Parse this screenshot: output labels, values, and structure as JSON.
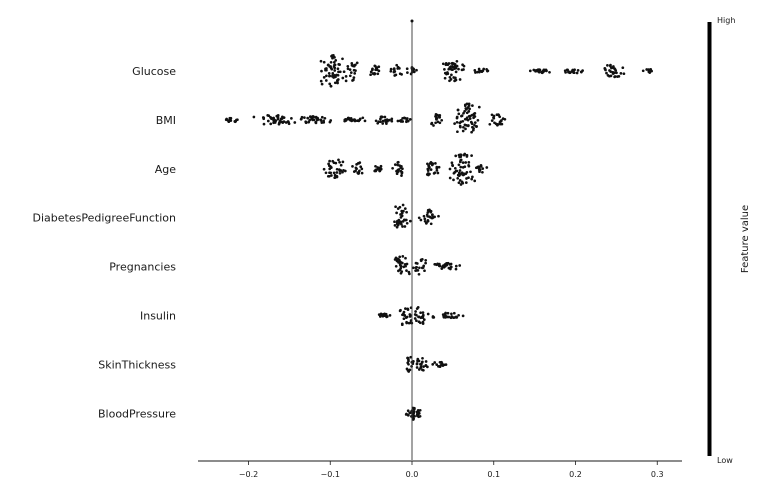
{
  "chart_data": {
    "type": "scatter",
    "subtype": "beeswarm",
    "title": "",
    "xlabel": "",
    "ylabel": "",
    "xlim": [
      -0.265,
      0.33
    ],
    "xticks": [
      -0.2,
      -0.1,
      0.0,
      0.1,
      0.2,
      0.3
    ],
    "xtick_labels": [
      "−0.2",
      "−0.1",
      "0.0",
      "0.1",
      "0.2",
      "0.3"
    ],
    "features": [
      {
        "name": "Glucose",
        "min": -0.12,
        "max": 0.3,
        "clusters": [
          {
            "x": -0.098,
            "spread": 0.9,
            "w": 0.022
          },
          {
            "x": -0.072,
            "spread": 0.55,
            "w": 0.01
          },
          {
            "x": -0.045,
            "spread": 0.3,
            "w": 0.012
          },
          {
            "x": -0.02,
            "spread": 0.35,
            "w": 0.01
          },
          {
            "x": 0.0,
            "spread": 0.2,
            "w": 0.01
          },
          {
            "x": 0.05,
            "spread": 0.6,
            "w": 0.022
          },
          {
            "x": 0.085,
            "spread": 0.12,
            "w": 0.012
          },
          {
            "x": 0.155,
            "spread": 0.12,
            "w": 0.022
          },
          {
            "x": 0.2,
            "spread": 0.12,
            "w": 0.02
          },
          {
            "x": 0.245,
            "spread": 0.35,
            "w": 0.02
          },
          {
            "x": 0.29,
            "spread": 0.1,
            "w": 0.01
          }
        ]
      },
      {
        "name": "BMI",
        "min": -0.235,
        "max": 0.12,
        "clusters": [
          {
            "x": -0.22,
            "spread": 0.12,
            "w": 0.014
          },
          {
            "x": -0.17,
            "spread": 0.3,
            "w": 0.03
          },
          {
            "x": -0.12,
            "spread": 0.2,
            "w": 0.03
          },
          {
            "x": -0.07,
            "spread": 0.15,
            "w": 0.025
          },
          {
            "x": -0.035,
            "spread": 0.25,
            "w": 0.015
          },
          {
            "x": -0.01,
            "spread": 0.12,
            "w": 0.01
          },
          {
            "x": 0.03,
            "spread": 0.35,
            "w": 0.012
          },
          {
            "x": 0.068,
            "spread": 0.95,
            "w": 0.022
          },
          {
            "x": 0.105,
            "spread": 0.35,
            "w": 0.014
          }
        ]
      },
      {
        "name": "Age",
        "min": -0.115,
        "max": 0.095,
        "clusters": [
          {
            "x": -0.095,
            "spread": 0.55,
            "w": 0.018
          },
          {
            "x": -0.065,
            "spread": 0.4,
            "w": 0.01
          },
          {
            "x": -0.04,
            "spread": 0.2,
            "w": 0.008
          },
          {
            "x": -0.015,
            "spread": 0.4,
            "w": 0.012
          },
          {
            "x": 0.025,
            "spread": 0.4,
            "w": 0.015
          },
          {
            "x": 0.06,
            "spread": 0.9,
            "w": 0.022
          },
          {
            "x": 0.085,
            "spread": 0.2,
            "w": 0.01
          }
        ]
      },
      {
        "name": "DiabetesPedigreeFunction",
        "min": -0.03,
        "max": 0.042,
        "clusters": [
          {
            "x": -0.012,
            "spread": 0.75,
            "w": 0.014
          },
          {
            "x": 0.02,
            "spread": 0.45,
            "w": 0.016
          }
        ]
      },
      {
        "name": "Pregnancies",
        "min": -0.03,
        "max": 0.065,
        "clusters": [
          {
            "x": -0.012,
            "spread": 0.6,
            "w": 0.014
          },
          {
            "x": 0.01,
            "spread": 0.45,
            "w": 0.012
          },
          {
            "x": 0.04,
            "spread": 0.2,
            "w": 0.022
          }
        ]
      },
      {
        "name": "Insulin",
        "min": -0.045,
        "max": 0.068,
        "clusters": [
          {
            "x": -0.035,
            "spread": 0.1,
            "w": 0.012
          },
          {
            "x": -0.008,
            "spread": 0.6,
            "w": 0.012
          },
          {
            "x": 0.01,
            "spread": 0.5,
            "w": 0.012
          },
          {
            "x": 0.045,
            "spread": 0.15,
            "w": 0.025
          }
        ]
      },
      {
        "name": "SkinThickness",
        "min": -0.01,
        "max": 0.045,
        "clusters": [
          {
            "x": -0.003,
            "spread": 0.5,
            "w": 0.008
          },
          {
            "x": 0.012,
            "spread": 0.35,
            "w": 0.014
          },
          {
            "x": 0.035,
            "spread": 0.15,
            "w": 0.012
          }
        ]
      },
      {
        "name": "BloodPressure",
        "min": -0.008,
        "max": 0.012,
        "clusters": [
          {
            "x": -0.002,
            "spread": 0.2,
            "w": 0.006
          },
          {
            "x": 0.002,
            "spread": 0.45,
            "w": 0.004
          },
          {
            "x": 0.008,
            "spread": 0.2,
            "w": 0.004
          }
        ]
      }
    ],
    "colorbar": {
      "title": "Feature value",
      "high_label": "High",
      "low_label": "Low",
      "color": "#000000"
    },
    "zero_line": true,
    "grid": false,
    "point_color": "#111111"
  }
}
